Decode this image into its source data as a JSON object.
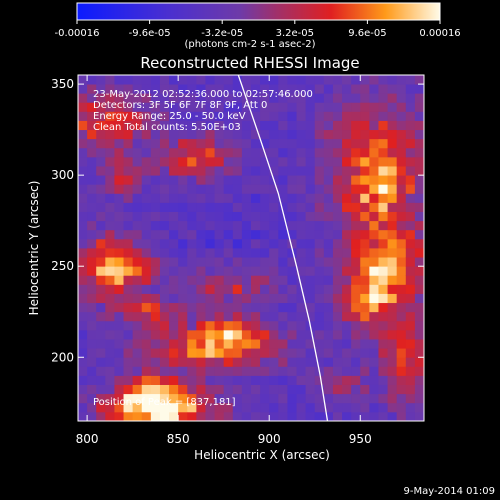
{
  "chart_data": {
    "type": "heatmap",
    "title": "Reconstructed RHESSI Image",
    "xlabel": "Heliocentric X (arcsec)",
    "ylabel": "Heliocentric Y (arcsec)",
    "xlim": [
      795,
      985
    ],
    "ylim": [
      165,
      355
    ],
    "x_ticks": [
      800,
      850,
      900,
      950
    ],
    "y_ticks": [
      200,
      250,
      300,
      350
    ],
    "colorbar": {
      "range": [
        -0.00016,
        0.00016
      ],
      "tick_values": [
        -0.00016,
        -9.6e-05,
        -3.2e-05,
        3.2e-05,
        9.6e-05,
        0.00016
      ],
      "tick_labels": [
        "-0.00016",
        "-9.6e-05",
        "-3.2e-05",
        "3.2e-05",
        "9.6e-05",
        "0.00016"
      ],
      "unit_label": "(photons cm-2 s-1 asec-2)"
    },
    "annotations": {
      "time_range": "23-May-2012 02:52:36.000 to 02:57:46.000",
      "detectors": "Detectors: 3F 5F 6F 7F 8F 9F, Att 0",
      "energy_range": "Energy Range: 25.0 - 50.0 keV",
      "clean_counts": "Clean    Total counts: 5.50E+03",
      "peak_position": "Position of Peak = [837,181]"
    },
    "peak": [
      837,
      181
    ],
    "limb_arc": [
      [
        883,
        355
      ],
      [
        895,
        320
      ],
      [
        905,
        290
      ],
      [
        915,
        250
      ],
      [
        922,
        220
      ],
      [
        928,
        190
      ],
      [
        932,
        165
      ]
    ],
    "colors": {
      "background": "#000000",
      "limb": "#ffffff",
      "text": "#ffffff"
    }
  },
  "footer": {
    "date": "9-May-2014 01:09"
  }
}
